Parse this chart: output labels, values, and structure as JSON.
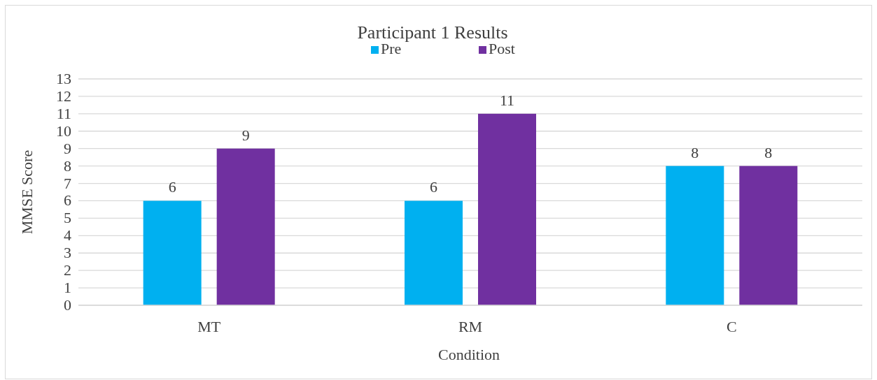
{
  "chart_data": {
    "type": "bar",
    "title": "Participant 1 Results",
    "xlabel": "Condition",
    "ylabel": "MMSE Score",
    "categories": [
      "MT",
      "RM",
      "C"
    ],
    "series": [
      {
        "name": "Pre",
        "color": "#00b0f0",
        "values": [
          6,
          6,
          8
        ]
      },
      {
        "name": "Post",
        "color": "#7030a0",
        "values": [
          9,
          11,
          8
        ]
      }
    ],
    "ylim": [
      0,
      13
    ],
    "yticks": [
      0,
      1,
      2,
      3,
      4,
      5,
      6,
      7,
      8,
      9,
      10,
      11,
      12,
      13
    ],
    "grid": "y",
    "legend": "top",
    "data_labels": true
  }
}
